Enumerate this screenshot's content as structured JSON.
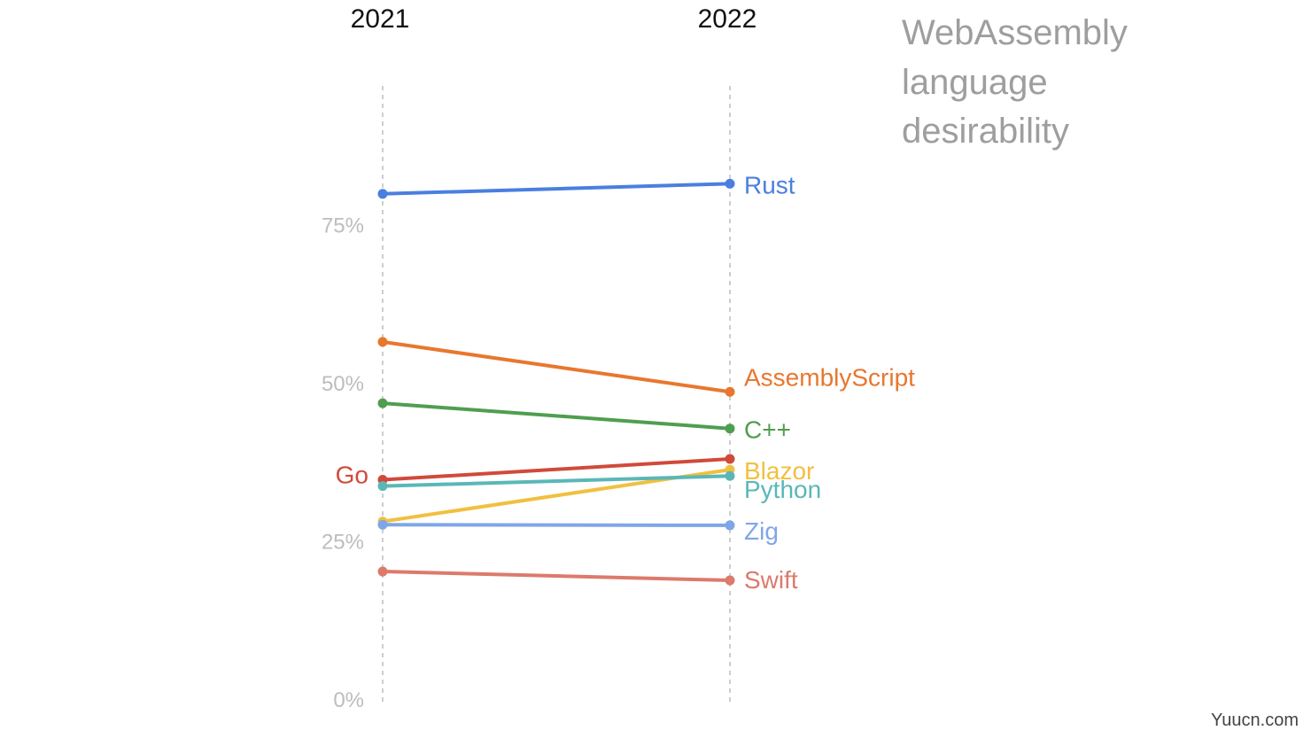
{
  "chart_data": {
    "type": "line",
    "title_lines": [
      "WebAssembly",
      "language",
      "desirability"
    ],
    "x": [
      "2021",
      "2022"
    ],
    "ylim": [
      0,
      100
    ],
    "yticks": [
      "0%",
      "25%",
      "50%",
      "75%"
    ],
    "ytick_values": [
      0,
      25,
      50,
      75
    ],
    "grid": "vertical dashed at each year",
    "series": [
      {
        "name": "Rust",
        "values": [
          80,
          81.6
        ],
        "color": "#4a7fe0",
        "label_side": "right"
      },
      {
        "name": "AssemblyScript",
        "values": [
          56.6,
          48.7
        ],
        "color": "#e8772e",
        "label_side": "right"
      },
      {
        "name": "C++",
        "values": [
          46.9,
          42.9
        ],
        "color": "#4f9e4f",
        "label_side": "right"
      },
      {
        "name": "Go",
        "values": [
          34.8,
          38.1
        ],
        "color": "#d04a3a",
        "label_side": "left"
      },
      {
        "name": "Blazor",
        "values": [
          28.2,
          36.4
        ],
        "color": "#f0c040",
        "label_side": "right"
      },
      {
        "name": "Python",
        "values": [
          33.8,
          35.4
        ],
        "color": "#5bb7b7",
        "label_side": "right"
      },
      {
        "name": "Zig",
        "values": [
          27.7,
          27.6
        ],
        "color": "#7fa6e8",
        "label_side": "right"
      },
      {
        "name": "Swift",
        "values": [
          20.3,
          18.9
        ],
        "color": "#dc7a6c",
        "label_side": "right"
      }
    ]
  },
  "watermark": "Yuucn.com"
}
